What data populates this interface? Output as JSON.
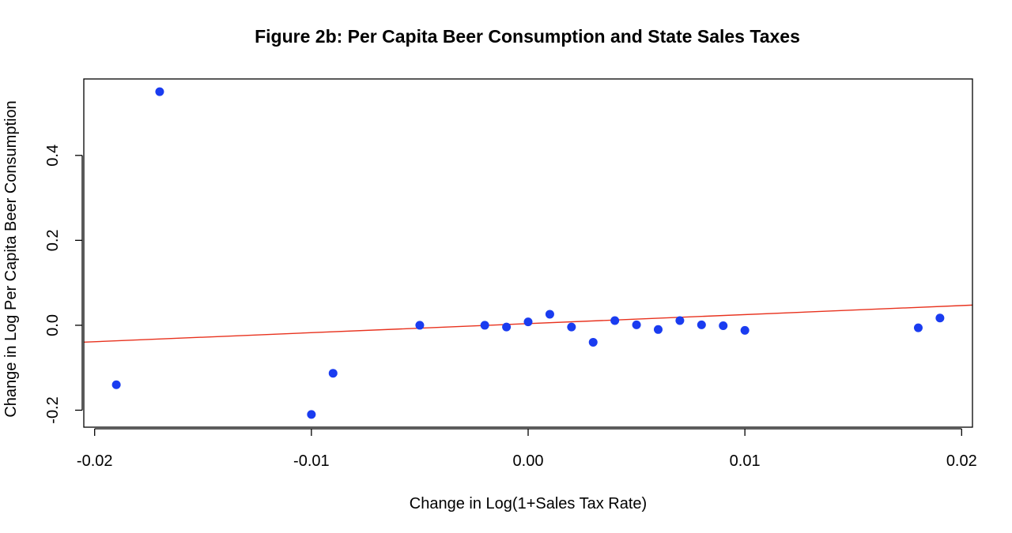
{
  "chart_data": {
    "type": "scatter",
    "title": "Figure 2b: Per Capita Beer Consumption and State Sales Taxes",
    "xlabel": "Change in Log(1+Sales Tax Rate)",
    "ylabel": "Change in Log Per Capita Beer Consumption",
    "xlim": [
      -0.0205,
      0.0205
    ],
    "ylim": [
      -0.24,
      0.58
    ],
    "xticks": [
      -0.02,
      -0.01,
      0.0,
      0.01,
      0.02
    ],
    "xtick_labels": [
      "-0.02",
      "-0.01",
      "0.00",
      "0.01",
      "0.02"
    ],
    "yticks": [
      -0.2,
      0.0,
      0.2,
      0.4
    ],
    "ytick_labels": [
      "-0.2",
      "0.0",
      "0.2",
      "0.4"
    ],
    "grid": false,
    "legend": "none",
    "colors": {
      "points": "#1a3cf0",
      "fit_line": "#e8321e",
      "axes": "#000000"
    },
    "points": [
      {
        "x": -0.019,
        "y": -0.14
      },
      {
        "x": -0.017,
        "y": 0.55
      },
      {
        "x": -0.01,
        "y": -0.21
      },
      {
        "x": -0.009,
        "y": -0.113
      },
      {
        "x": -0.005,
        "y": 0.0
      },
      {
        "x": -0.002,
        "y": 0.0
      },
      {
        "x": -0.001,
        "y": -0.004
      },
      {
        "x": 0.0,
        "y": 0.008
      },
      {
        "x": 0.001,
        "y": 0.026
      },
      {
        "x": 0.002,
        "y": -0.004
      },
      {
        "x": 0.003,
        "y": -0.04
      },
      {
        "x": 0.004,
        "y": 0.011
      },
      {
        "x": 0.005,
        "y": 0.001
      },
      {
        "x": 0.006,
        "y": -0.01
      },
      {
        "x": 0.007,
        "y": 0.011
      },
      {
        "x": 0.008,
        "y": 0.001
      },
      {
        "x": 0.009,
        "y": -0.001
      },
      {
        "x": 0.01,
        "y": -0.012
      },
      {
        "x": 0.018,
        "y": -0.006
      },
      {
        "x": 0.019,
        "y": 0.017
      }
    ],
    "fit_line": {
      "x": [
        -0.0205,
        0.0205
      ],
      "y": [
        -0.0398,
        0.0475
      ]
    }
  }
}
